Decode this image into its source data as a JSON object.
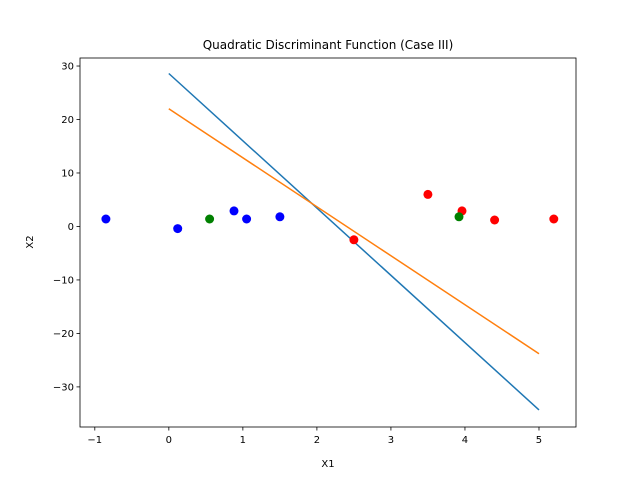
{
  "chart_data": {
    "type": "scatter",
    "title": "Quadratic Discriminant Function (Case III)",
    "xlabel": "X1",
    "ylabel": "X2",
    "xlim": [
      -1.2,
      5.5
    ],
    "ylim": [
      -37.5,
      31.5
    ],
    "xticks": [
      -1,
      0,
      1,
      2,
      3,
      4,
      5
    ],
    "yticks": [
      -30,
      -20,
      -10,
      0,
      10,
      20,
      30
    ],
    "xtick_labels": [
      "−1",
      "0",
      "1",
      "2",
      "3",
      "4",
      "5"
    ],
    "ytick_labels": [
      "−30",
      "−20",
      "−10",
      "0",
      "10",
      "20",
      "30"
    ],
    "grid": false,
    "lines": [
      {
        "color": "#1f77b4",
        "points": [
          [
            0,
            28.6
          ],
          [
            5,
            -34.3
          ]
        ]
      },
      {
        "color": "#ff7f0e",
        "points": [
          [
            0,
            22.0
          ],
          [
            5,
            -23.8
          ]
        ]
      }
    ],
    "scatter_series": [
      {
        "color": "#0000ff",
        "points": [
          [
            -0.85,
            1.4
          ],
          [
            0.12,
            -0.4
          ],
          [
            0.88,
            2.9
          ],
          [
            1.05,
            1.4
          ],
          [
            1.5,
            1.8
          ]
        ]
      },
      {
        "color": "#ff0000",
        "points": [
          [
            2.5,
            -2.5
          ],
          [
            3.5,
            6.0
          ],
          [
            3.96,
            2.9
          ],
          [
            4.4,
            1.2
          ],
          [
            5.2,
            1.4
          ]
        ]
      },
      {
        "color": "#008000",
        "points": [
          [
            0.55,
            1.4
          ],
          [
            3.92,
            1.8
          ]
        ]
      }
    ]
  }
}
